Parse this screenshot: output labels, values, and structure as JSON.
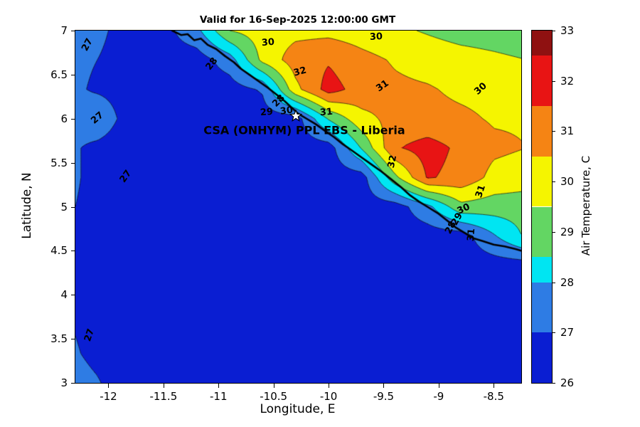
{
  "chart_data": {
    "type": "heatmap",
    "subtype": "filled-contour-map",
    "title": "Valid for 16-Sep-2025 12:00:00 GMT",
    "xlabel": "Longitude, E",
    "ylabel": "Latitude, N",
    "axes": {
      "xlim": [
        -12.3,
        -8.25
      ],
      "ylim": [
        3,
        7
      ],
      "xticks": [
        {
          "value": -12,
          "label": "-12"
        },
        {
          "value": -11.5,
          "label": "-11.5"
        },
        {
          "value": -11,
          "label": "-11"
        },
        {
          "value": -10.5,
          "label": "-10.5"
        },
        {
          "value": -10,
          "label": "-10"
        },
        {
          "value": -9.5,
          "label": "-9.5"
        },
        {
          "value": -9,
          "label": "-9"
        },
        {
          "value": -8.5,
          "label": "-8.5"
        }
      ],
      "yticks": [
        {
          "value": 3,
          "label": "3"
        },
        {
          "value": 3.5,
          "label": "3.5"
        },
        {
          "value": 4,
          "label": "4"
        },
        {
          "value": 4.5,
          "label": "4.5"
        },
        {
          "value": 5,
          "label": "5"
        },
        {
          "value": 5.5,
          "label": "5.5"
        },
        {
          "value": 6,
          "label": "6"
        },
        {
          "value": 6.5,
          "label": "6.5"
        },
        {
          "value": 7,
          "label": "7"
        }
      ]
    },
    "contour_levels": [
      27,
      28,
      29,
      30,
      31,
      32
    ],
    "band_colors": [
      "#0a1ed2",
      "#2e7ce4",
      "#00e5f2",
      "#63d663",
      "#f5f500",
      "#f58414",
      "#e81414"
    ],
    "grid": {
      "lon": [
        -12.4,
        -12.1,
        -11.8,
        -11.5,
        -11.2,
        -10.9,
        -10.6,
        -10.3,
        -10.0,
        -9.7,
        -9.4,
        -9.1,
        -8.8,
        -8.5,
        -8.2
      ],
      "lat": [
        3.0,
        3.33,
        3.67,
        4.0,
        4.33,
        4.67,
        5.0,
        5.33,
        5.67,
        6.0,
        6.33,
        6.67,
        7.0
      ],
      "values": [
        [
          27.3,
          27.05,
          26.6,
          26.5,
          26.5,
          26.5,
          26.5,
          26.5,
          26.5,
          26.5,
          26.5,
          26.5,
          26.5,
          26.5,
          26.5
        ],
        [
          27.15,
          26.85,
          26.55,
          26.5,
          26.5,
          26.5,
          26.5,
          26.5,
          26.5,
          26.5,
          26.5,
          26.5,
          26.5,
          26.5,
          26.5
        ],
        [
          27.05,
          26.8,
          26.55,
          26.5,
          26.5,
          26.5,
          26.5,
          26.5,
          26.5,
          26.5,
          26.5,
          26.5,
          26.5,
          26.5,
          26.5
        ],
        [
          27.05,
          26.8,
          26.6,
          26.5,
          26.5,
          26.5,
          26.5,
          26.5,
          26.5,
          26.5,
          26.5,
          26.5,
          26.5,
          26.5,
          26.5
        ],
        [
          27.05,
          26.85,
          26.6,
          26.5,
          26.5,
          26.5,
          26.5,
          26.5,
          26.5,
          26.5,
          26.5,
          26.5,
          26.5,
          26.5,
          26.5
        ],
        [
          27.05,
          26.85,
          26.65,
          26.5,
          26.5,
          26.5,
          26.5,
          26.5,
          26.5,
          26.5,
          26.5,
          26.5,
          26.5,
          27.9,
          29.2
        ],
        [
          27.05,
          26.9,
          26.7,
          26.5,
          26.5,
          26.5,
          26.5,
          26.5,
          26.5,
          26.5,
          26.5,
          27.7,
          29.7,
          29.5,
          29.4
        ],
        [
          27.1,
          26.9,
          26.7,
          26.55,
          26.5,
          26.5,
          26.5,
          26.5,
          26.5,
          26.5,
          29.7,
          32.1,
          31.7,
          30.7,
          30.5
        ],
        [
          27.1,
          26.9,
          26.75,
          26.55,
          26.5,
          26.5,
          26.5,
          26.5,
          26.5,
          29.1,
          31.9,
          32.4,
          31.8,
          31.2,
          31.0
        ],
        [
          27.1,
          27.3,
          26.8,
          26.6,
          26.5,
          26.5,
          26.5,
          26.5,
          29.1,
          30.7,
          31.3,
          31.3,
          31.2,
          30.9,
          30.9
        ],
        [
          27.1,
          26.95,
          26.85,
          26.6,
          26.5,
          26.5,
          27.1,
          30.7,
          32.4,
          31.6,
          31.2,
          31.1,
          30.8,
          30.7,
          30.4
        ],
        [
          27.1,
          27.0,
          26.9,
          26.6,
          26.5,
          27.5,
          30.3,
          31.5,
          31.9,
          31.3,
          30.9,
          30.6,
          30.4,
          30.2,
          30.0
        ],
        [
          27.1,
          27.05,
          26.9,
          26.65,
          27.7,
          30.0,
          30.5,
          30.7,
          30.7,
          30.5,
          30.2,
          29.9,
          29.6,
          29.5,
          29.3
        ]
      ]
    },
    "coastline": [
      [
        -11.42,
        7.0
      ],
      [
        -11.34,
        6.95
      ],
      [
        -11.28,
        6.96
      ],
      [
        -11.22,
        6.89
      ],
      [
        -11.16,
        6.91
      ],
      [
        -11.1,
        6.84
      ],
      [
        -11.02,
        6.79
      ],
      [
        -10.94,
        6.71
      ],
      [
        -10.86,
        6.64
      ],
      [
        -10.8,
        6.57
      ],
      [
        -10.72,
        6.5
      ],
      [
        -10.63,
        6.42
      ],
      [
        -10.55,
        6.35
      ],
      [
        -10.47,
        6.27
      ],
      [
        -10.4,
        6.2
      ],
      [
        -10.33,
        6.12
      ],
      [
        -10.28,
        6.06
      ],
      [
        -10.2,
        6.0
      ],
      [
        -10.12,
        5.94
      ],
      [
        -10.03,
        5.86
      ],
      [
        -9.95,
        5.79
      ],
      [
        -9.87,
        5.71
      ],
      [
        -9.79,
        5.64
      ],
      [
        -9.7,
        5.56
      ],
      [
        -9.61,
        5.48
      ],
      [
        -9.52,
        5.4
      ],
      [
        -9.43,
        5.31
      ],
      [
        -9.34,
        5.22
      ],
      [
        -9.26,
        5.13
      ],
      [
        -9.18,
        5.06
      ],
      [
        -9.09,
        4.99
      ],
      [
        -9.0,
        4.92
      ],
      [
        -8.92,
        4.84
      ],
      [
        -8.84,
        4.76
      ],
      [
        -8.76,
        4.7
      ],
      [
        -8.68,
        4.64
      ],
      [
        -8.6,
        4.61
      ],
      [
        -8.5,
        4.57
      ],
      [
        -8.4,
        4.55
      ],
      [
        -8.3,
        4.52
      ],
      [
        -8.25,
        4.5
      ]
    ],
    "contour_labels": [
      {
        "text": "27",
        "lon": -12.19,
        "lat": 6.84,
        "rot": -62
      },
      {
        "text": "27",
        "lon": -12.1,
        "lat": 6.01,
        "rot": -40
      },
      {
        "text": "27",
        "lon": -11.84,
        "lat": 5.34,
        "rot": -55
      },
      {
        "text": "27",
        "lon": -12.17,
        "lat": 3.54,
        "rot": -72
      },
      {
        "text": "28",
        "lon": -11.06,
        "lat": 6.62,
        "rot": -52
      },
      {
        "text": "30",
        "lon": -10.55,
        "lat": 6.86,
        "rot": -5
      },
      {
        "text": "30",
        "lon": -9.57,
        "lat": 6.93,
        "rot": -3
      },
      {
        "text": "32",
        "lon": -10.26,
        "lat": 6.53,
        "rot": -15
      },
      {
        "text": "31",
        "lon": -9.51,
        "lat": 6.37,
        "rot": -35
      },
      {
        "text": "30",
        "lon": -8.62,
        "lat": 6.34,
        "rot": -42
      },
      {
        "text": "28",
        "lon": -10.45,
        "lat": 6.2,
        "rot": -45
      },
      {
        "text": "29",
        "lon": -10.56,
        "lat": 6.07,
        "rot": -5
      },
      {
        "text": "30",
        "lon": -10.38,
        "lat": 6.09,
        "rot": -8
      },
      {
        "text": "31",
        "lon": -10.02,
        "lat": 6.07,
        "rot": -5
      },
      {
        "text": "32",
        "lon": -9.42,
        "lat": 5.51,
        "rot": -78
      },
      {
        "text": "31",
        "lon": -8.62,
        "lat": 5.17,
        "rot": -72
      },
      {
        "text": "30",
        "lon": -8.77,
        "lat": 4.97,
        "rot": -25
      },
      {
        "text": "29",
        "lon": -8.83,
        "lat": 4.86,
        "rot": -60
      },
      {
        "text": "28",
        "lon": -8.89,
        "lat": 4.76,
        "rot": -62
      },
      {
        "text": "31",
        "lon": -8.7,
        "lat": 4.68,
        "rot": -85
      }
    ],
    "station_marker": {
      "lon": -10.3,
      "lat": 6.03
    },
    "annotation": {
      "text": "CSA (ONHYM) PPL EBS  - Liberia",
      "lon": -10.22,
      "lat": 5.87
    },
    "colorbar": {
      "label": "Air Temperature, C",
      "range": [
        26,
        33
      ],
      "ticks": [
        26,
        27,
        28,
        29,
        30,
        31,
        32,
        33
      ],
      "segments": [
        {
          "from": 26,
          "to": 27,
          "color": "#0a1ed2"
        },
        {
          "from": 27,
          "to": 28,
          "color": "#2e7ce4"
        },
        {
          "from": 28,
          "to": 28.5,
          "color": "#00e5f2"
        },
        {
          "from": 28.5,
          "to": 29.5,
          "color": "#63d663"
        },
        {
          "from": 29.5,
          "to": 30.5,
          "color": "#f5f500"
        },
        {
          "from": 30.5,
          "to": 31.5,
          "color": "#f58414"
        },
        {
          "from": 31.5,
          "to": 32.5,
          "color": "#e81414"
        },
        {
          "from": 32.5,
          "to": 33,
          "color": "#8f1111"
        }
      ]
    }
  }
}
